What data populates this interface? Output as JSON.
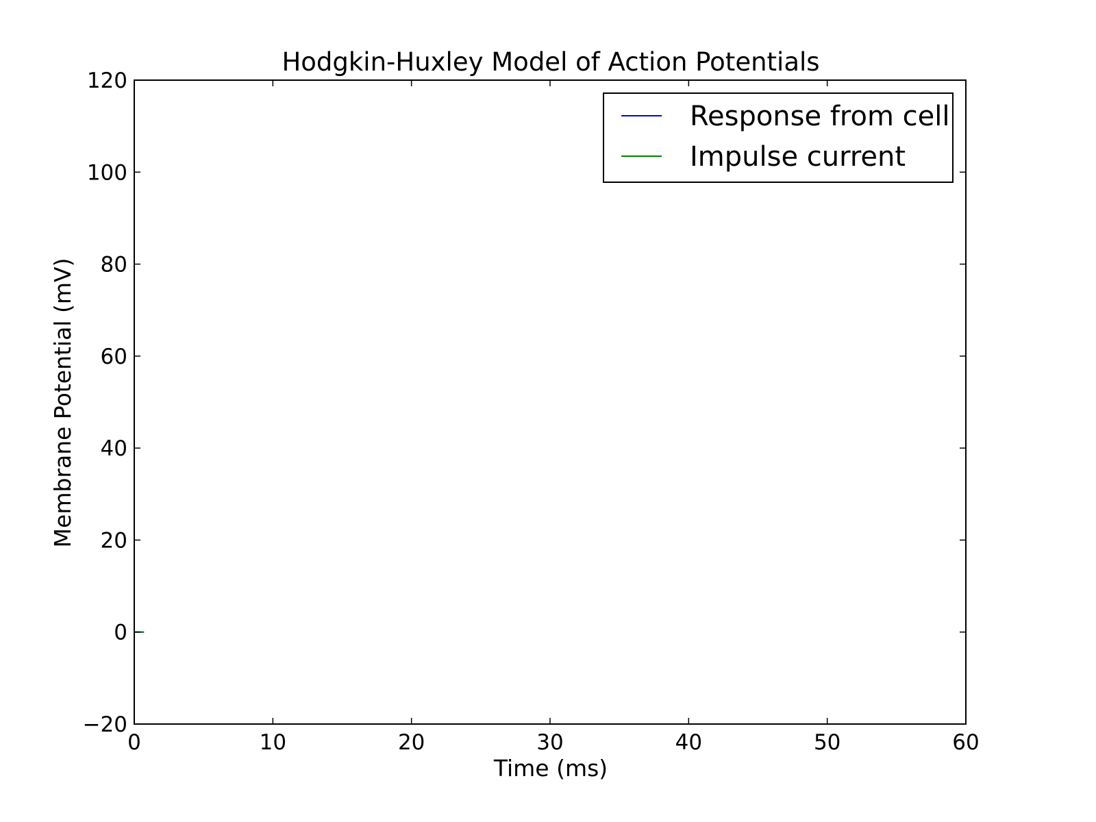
{
  "chart_data": {
    "type": "line",
    "title": "Hodgkin-Huxley Model of Action Potentials",
    "xlabel": "Time (ms)",
    "ylabel": "Membrane Potential (mV)",
    "xlim": [
      0,
      60
    ],
    "ylim": [
      -20,
      120
    ],
    "x_ticks": [
      0,
      10,
      20,
      30,
      40,
      50,
      60
    ],
    "y_ticks": [
      -20,
      0,
      20,
      40,
      60,
      80,
      100,
      120
    ],
    "x_tick_labels": [
      "0",
      "10",
      "20",
      "30",
      "40",
      "50",
      "60"
    ],
    "y_tick_labels": [
      "−20",
      "0",
      "20",
      "40",
      "60",
      "80",
      "100",
      "120"
    ],
    "grid": false,
    "legend_position": "top-right",
    "series": [
      {
        "name": "Response from cell",
        "color": "#0000ff",
        "x": [
          0,
          0.7
        ],
        "y": [
          0,
          0
        ]
      },
      {
        "name": "Impulse current",
        "color": "#008000",
        "x": [
          0,
          0.7
        ],
        "y": [
          0,
          0
        ]
      }
    ]
  }
}
